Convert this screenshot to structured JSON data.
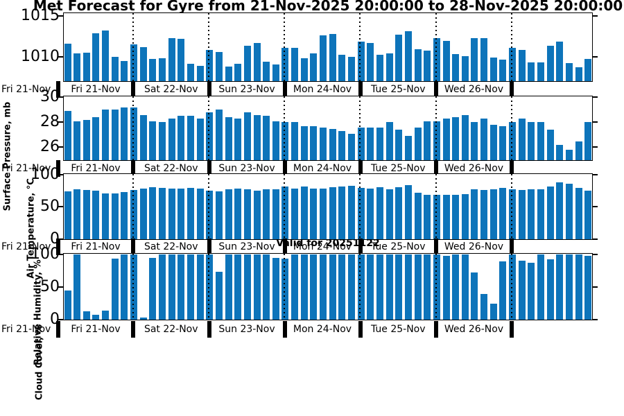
{
  "title": "Met Forecast for Gyre from 21-Nov-2025 20:00:00 to 28-Nov-2025 20:00:00",
  "valid_label": "Valid for 20251122",
  "first_tick_label": "Fri 21-Nov",
  "day_labels": [
    "Fri 21-Nov",
    "Sat 22-Nov",
    "Sun 23-Nov",
    "Mon 24-Nov",
    "Tue 25-Nov",
    "Wed 26-Nov"
  ],
  "bar_color": "#0d74ba",
  "chart_data": [
    {
      "type": "bar",
      "ylabel": "Surface Pressure, mb",
      "yticks": [
        1010,
        1015
      ],
      "ylim": [
        1007.1,
        1015.33
      ],
      "x_day_labels": [
        "Fri 21-Nov",
        "Sat 22-Nov",
        "Sun 23-Nov",
        "Mon 24-Nov",
        "Tue 25-Nov",
        "Wed 26-Nov"
      ],
      "values": [
        1011.7,
        1010.5,
        1010.6,
        1013.0,
        1013.3,
        1010.1,
        1009.6,
        1011.6,
        1011.3,
        1009.8,
        1009.9,
        1012.4,
        1012.3,
        1009.2,
        1009.0,
        1010.9,
        1010.7,
        1008.9,
        1009.2,
        1011.4,
        1011.8,
        1009.5,
        1009.1,
        1011.2,
        1011.2,
        1009.9,
        1010.5,
        1012.7,
        1012.9,
        1010.3,
        1010.1,
        1011.9,
        1011.8,
        1010.3,
        1010.5,
        1012.8,
        1013.2,
        1011.0,
        1010.8,
        1012.4,
        1012.0,
        1010.4,
        1010.2,
        1012.4,
        1012.4,
        1010.0,
        1009.7,
        1011.2,
        1010.9,
        1009.4,
        1009.4,
        1011.4,
        1011.9,
        1009.3,
        1008.8,
        1009.8
      ]
    },
    {
      "type": "bar",
      "ylabel": "Air Temperature, °C",
      "yticks": [
        26,
        28,
        30
      ],
      "ylim": [
        25,
        30
      ],
      "x_day_labels": [
        "Fri 21-Nov",
        "Sat 22-Nov",
        "Sun 23-Nov",
        "Mon 24-Nov",
        "Tue 25-Nov",
        "Wed 26-Nov"
      ],
      "values": [
        28.9,
        28.1,
        28.2,
        28.4,
        29.0,
        29.0,
        29.2,
        29.2,
        28.6,
        28.1,
        28.0,
        28.3,
        28.5,
        28.5,
        28.3,
        28.8,
        29.0,
        28.4,
        28.3,
        28.8,
        28.6,
        28.5,
        28.1,
        28.0,
        28.0,
        27.7,
        27.7,
        27.6,
        27.5,
        27.3,
        27.1,
        27.6,
        27.6,
        27.6,
        28.0,
        27.4,
        26.9,
        27.6,
        28.1,
        28.1,
        28.3,
        28.4,
        28.6,
        28.0,
        28.3,
        27.8,
        27.7,
        28.0,
        28.3,
        28.0,
        28.0,
        27.4,
        26.2,
        25.8,
        26.5,
        28.0
      ]
    },
    {
      "type": "bar",
      "ylabel": "Relative Humidity, %",
      "yticks": [
        0,
        50,
        100
      ],
      "ylim": [
        0,
        100
      ],
      "x_day_labels": [
        "Fri 21-Nov",
        "Sat 22-Nov",
        "Sun 23-Nov",
        "Mon 24-Nov",
        "Tue 25-Nov",
        "Wed 26-Nov"
      ],
      "values": [
        74,
        78,
        76,
        75,
        71,
        71,
        73,
        76,
        79,
        81,
        80,
        79,
        79,
        80,
        79,
        75,
        74,
        78,
        79,
        78,
        75,
        78,
        78,
        82,
        79,
        82,
        79,
        79,
        81,
        82,
        83,
        80,
        79,
        81,
        77,
        81,
        84,
        72,
        69,
        69,
        69,
        69,
        70,
        78,
        76,
        78,
        80,
        78,
        76,
        78,
        77,
        82,
        88,
        86,
        80,
        75
      ]
    },
    {
      "type": "bar",
      "ylabel": "Cloud Cover, %",
      "yticks": [
        0,
        50,
        100
      ],
      "ylim": [
        0,
        100
      ],
      "x_day_labels": [
        "Fri 21-Nov",
        "Sat 22-Nov",
        "Sun 23-Nov",
        "Mon 24-Nov",
        "Tue 25-Nov",
        "Wed 26-Nov"
      ],
      "values": [
        45,
        100,
        13,
        8,
        14,
        94,
        100,
        100,
        3,
        95,
        100,
        100,
        100,
        100,
        100,
        100,
        73,
        100,
        100,
        100,
        100,
        100,
        95,
        94,
        100,
        100,
        100,
        100,
        100,
        100,
        100,
        100,
        100,
        100,
        100,
        100,
        100,
        100,
        100,
        100,
        98,
        100,
        100,
        72,
        39,
        25,
        89,
        100,
        90,
        87,
        100,
        93,
        100,
        100,
        100,
        98
      ]
    }
  ]
}
